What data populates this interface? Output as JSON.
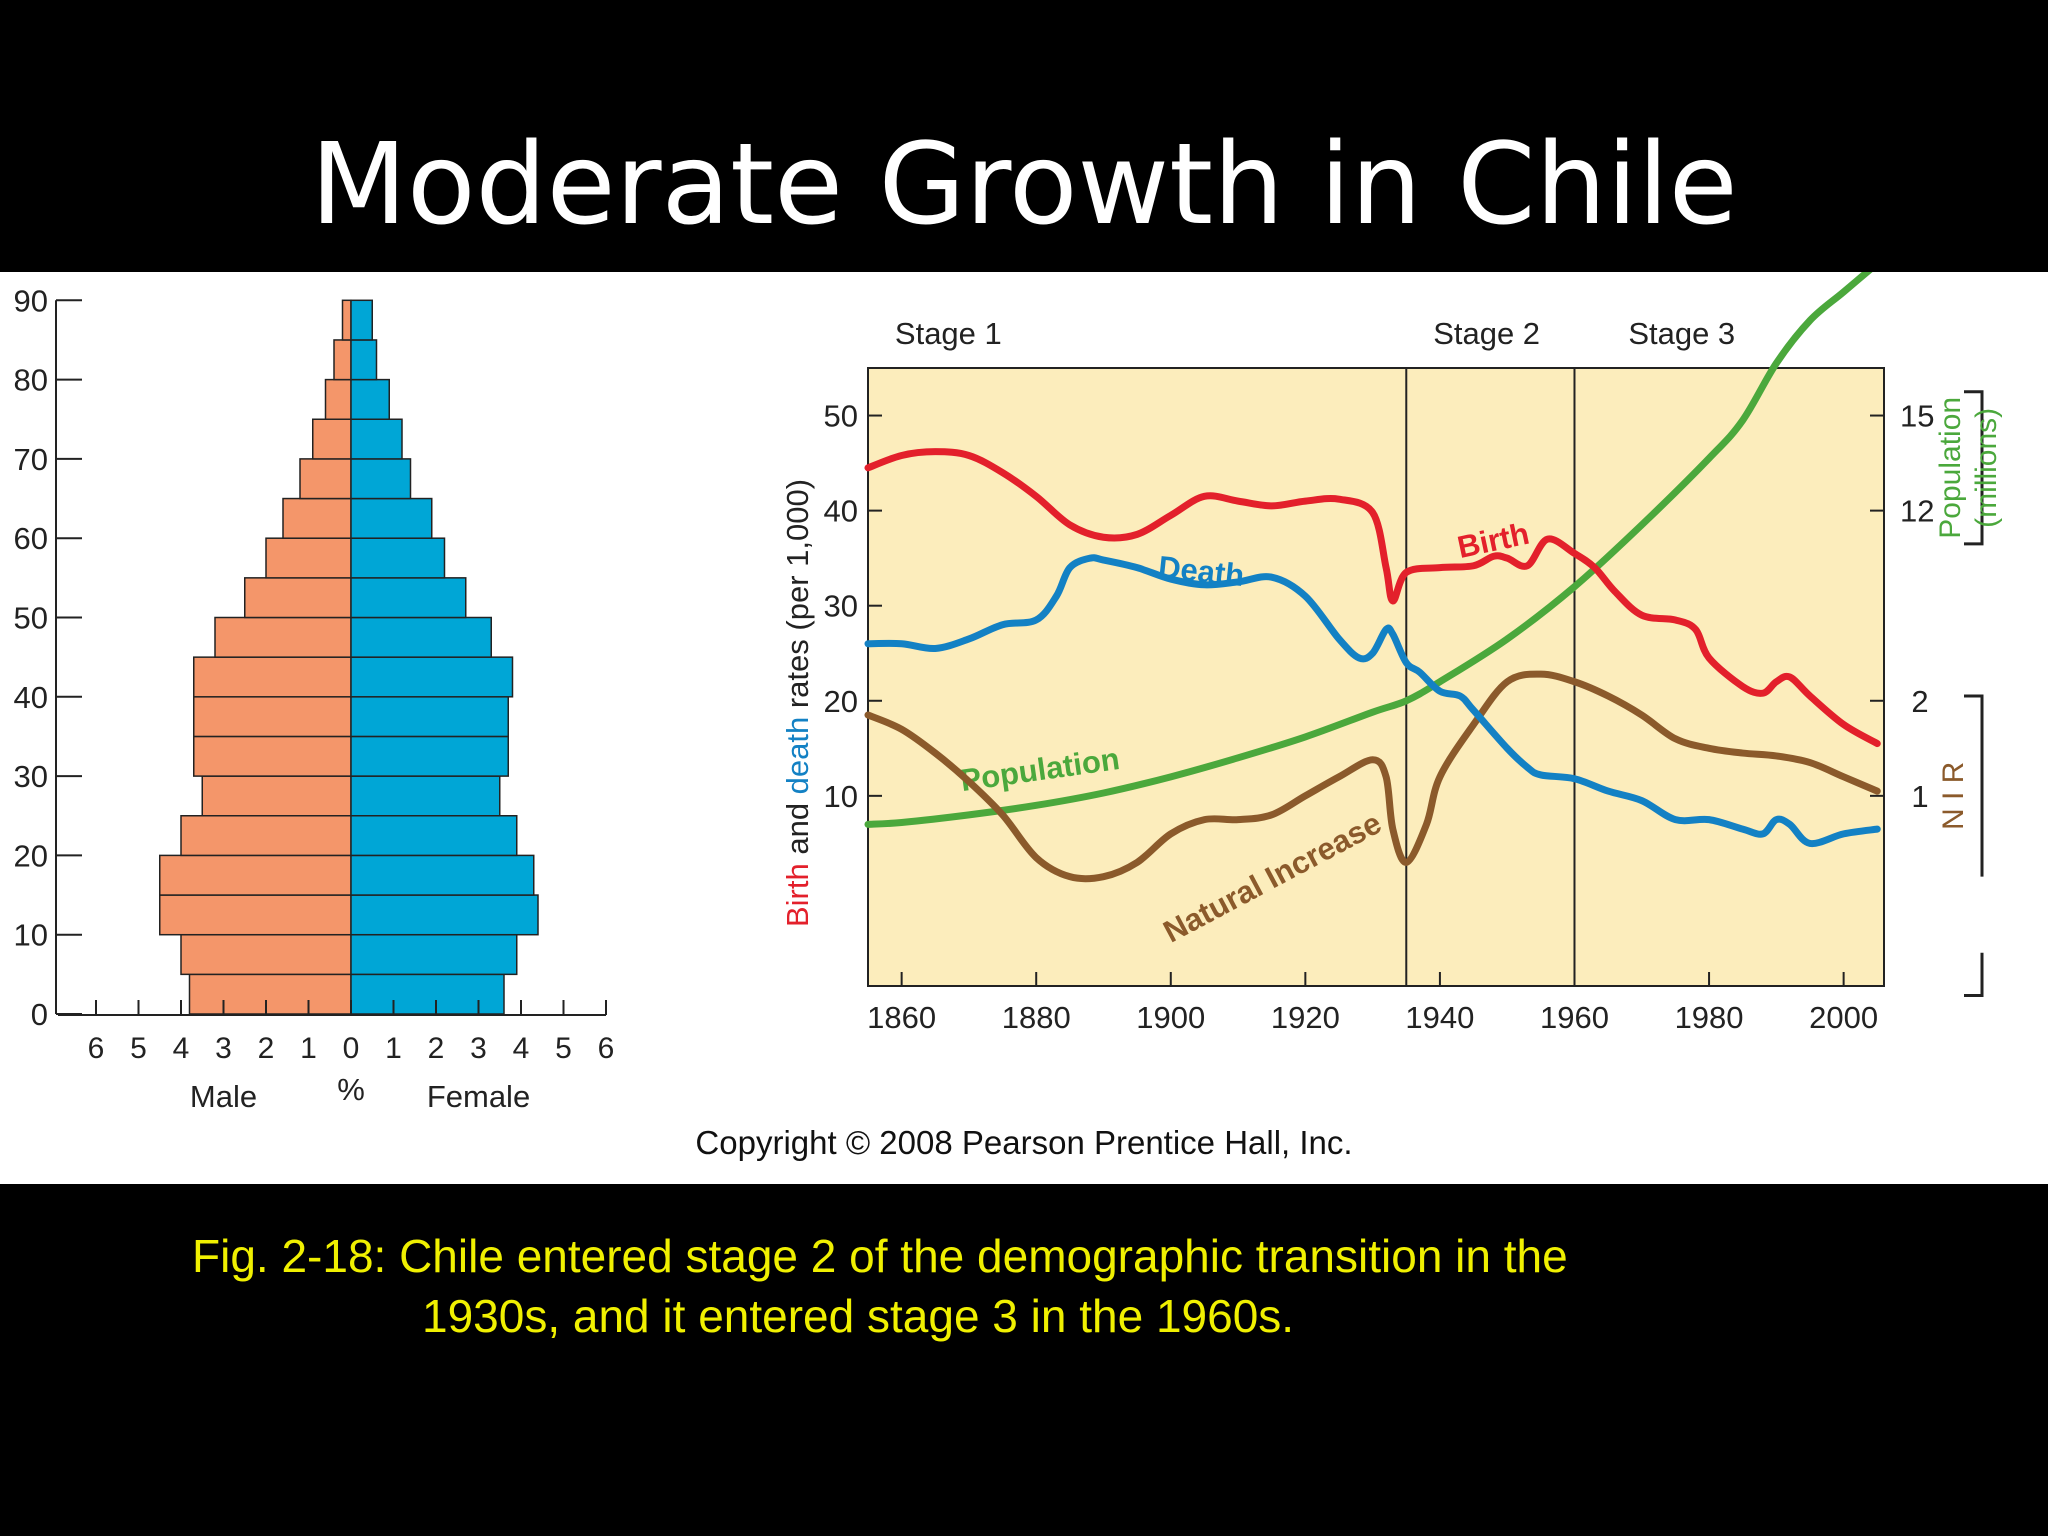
{
  "slide": {
    "title": "Moderate Growth in Chile",
    "copyright": "Copyright © 2008 Pearson Prentice Hall, Inc.",
    "caption_line1": "Fig. 2-18:  Chile entered stage 2 of the demographic transition in the",
    "caption_line2": "1930s, and it entered stage 3 in the 1960s."
  },
  "colors": {
    "male": "#F4966A",
    "female": "#00A6D6",
    "birth": "#E3202B",
    "death": "#1381C4",
    "population": "#4BA83C",
    "natural_increase": "#8B5A2B",
    "plot_bg": "#FCEDBC"
  },
  "chart_data": [
    {
      "type": "bar",
      "subtype": "population-pyramid",
      "xlabel": "%",
      "side_labels": {
        "left": "Male",
        "right": "Female"
      },
      "x_ticks": [
        "6",
        "5",
        "4",
        "3",
        "2",
        "1",
        "0",
        "1",
        "2",
        "3",
        "4",
        "5",
        "6"
      ],
      "y_ticks": [
        "0",
        "10",
        "20",
        "30",
        "40",
        "50",
        "60",
        "70",
        "80",
        "90"
      ],
      "xlim": [
        -6,
        6
      ],
      "ylim": [
        0,
        90
      ],
      "age_groups": [
        {
          "from": 0,
          "to": 5,
          "male": 3.8,
          "female": 3.6
        },
        {
          "from": 5,
          "to": 10,
          "male": 4.0,
          "female": 3.9
        },
        {
          "from": 10,
          "to": 15,
          "male": 4.5,
          "female": 4.4
        },
        {
          "from": 15,
          "to": 20,
          "male": 4.5,
          "female": 4.3
        },
        {
          "from": 20,
          "to": 25,
          "male": 4.0,
          "female": 3.9
        },
        {
          "from": 25,
          "to": 30,
          "male": 3.5,
          "female": 3.5
        },
        {
          "from": 30,
          "to": 35,
          "male": 3.7,
          "female": 3.7
        },
        {
          "from": 35,
          "to": 40,
          "male": 3.7,
          "female": 3.7
        },
        {
          "from": 40,
          "to": 45,
          "male": 3.7,
          "female": 3.8
        },
        {
          "from": 45,
          "to": 50,
          "male": 3.2,
          "female": 3.3
        },
        {
          "from": 50,
          "to": 55,
          "male": 2.5,
          "female": 2.7
        },
        {
          "from": 55,
          "to": 60,
          "male": 2.0,
          "female": 2.2
        },
        {
          "from": 60,
          "to": 65,
          "male": 1.6,
          "female": 1.9
        },
        {
          "from": 65,
          "to": 70,
          "male": 1.2,
          "female": 1.4
        },
        {
          "from": 70,
          "to": 75,
          "male": 0.9,
          "female": 1.2
        },
        {
          "from": 75,
          "to": 80,
          "male": 0.6,
          "female": 0.9
        },
        {
          "from": 80,
          "to": 85,
          "male": 0.4,
          "female": 0.6
        },
        {
          "from": 85,
          "to": 90,
          "male": 0.2,
          "female": 0.5
        }
      ]
    },
    {
      "type": "line",
      "ylabel_parts": [
        "Birth",
        " and ",
        "death",
        " rates (per 1,000)"
      ],
      "y2label": "Population (millions)",
      "y3label": "N I R",
      "xlim": [
        1855,
        2006
      ],
      "ylim": [
        -10,
        55
      ],
      "x_ticks": [
        1860,
        1880,
        1900,
        1920,
        1940,
        1960,
        1980,
        2000
      ],
      "y_ticks": [
        10,
        20,
        30,
        40,
        50
      ],
      "y2_ticks": [
        {
          "label": "12",
          "value": 40
        },
        {
          "label": "15",
          "value": 50
        }
      ],
      "y3_ticks": [
        {
          "label": "1",
          "value": 10
        },
        {
          "label": "2",
          "value": 20
        }
      ],
      "stages": [
        {
          "label": "Stage 1",
          "year": 1859
        },
        {
          "label": "Stage 2",
          "year": 1939
        },
        {
          "label": "Stage 3",
          "year": 1968
        }
      ],
      "stage_boundaries": [
        1935,
        1960
      ],
      "series": [
        {
          "name": "Birth",
          "label_year": 1943,
          "label_value": 35,
          "label_rotate": -12,
          "x": [
            1855,
            1860,
            1865,
            1870,
            1875,
            1880,
            1885,
            1890,
            1895,
            1900,
            1905,
            1910,
            1915,
            1920,
            1925,
            1930,
            1932,
            1933,
            1935,
            1940,
            1945,
            1948,
            1950,
            1953,
            1956,
            1960,
            1963,
            1966,
            1970,
            1975,
            1978,
            1980,
            1985,
            1988,
            1990,
            1992,
            1995,
            2000,
            2005
          ],
          "values": [
            44.5,
            45.8,
            46.2,
            45.8,
            44.0,
            41.5,
            38.5,
            37.2,
            37.5,
            39.5,
            41.5,
            41.0,
            40.5,
            41.0,
            41.2,
            39.8,
            34.0,
            30.5,
            33.5,
            34.0,
            34.2,
            35.2,
            35.0,
            34.2,
            37.0,
            35.5,
            34.0,
            31.5,
            29.0,
            28.5,
            27.5,
            24.5,
            21.5,
            20.8,
            22.0,
            22.5,
            20.5,
            17.5,
            15.5
          ]
        },
        {
          "name": "Death",
          "label_year": 1898,
          "label_value": 33,
          "label_rotate": 6,
          "x": [
            1855,
            1860,
            1865,
            1870,
            1875,
            1880,
            1883,
            1885,
            1888,
            1890,
            1895,
            1900,
            1905,
            1910,
            1915,
            1920,
            1925,
            1928,
            1930,
            1932,
            1933,
            1935,
            1937,
            1940,
            1943,
            1945,
            1950,
            1953,
            1955,
            1960,
            1965,
            1970,
            1975,
            1980,
            1985,
            1988,
            1990,
            1992,
            1995,
            2000,
            2005
          ],
          "values": [
            26.0,
            26.0,
            25.5,
            26.5,
            28.0,
            28.5,
            31.0,
            34.0,
            35.0,
            34.8,
            34.0,
            32.8,
            32.2,
            32.5,
            33.0,
            31.0,
            26.5,
            24.5,
            25.0,
            27.5,
            27.0,
            24.0,
            23.0,
            21.0,
            20.5,
            19.0,
            15.0,
            13.0,
            12.2,
            11.8,
            10.5,
            9.5,
            7.5,
            7.5,
            6.5,
            6.0,
            7.5,
            7.0,
            5.0,
            6.0,
            6.5
          ]
        },
        {
          "name": "Population",
          "label_year": 1869,
          "label_value": 10.5,
          "label_rotate": -8,
          "x": [
            1855,
            1860,
            1870,
            1880,
            1890,
            1900,
            1910,
            1920,
            1930,
            1935,
            1940,
            1950,
            1960,
            1970,
            1980,
            1985,
            1990,
            1995,
            2000,
            2005
          ],
          "values": [
            7.0,
            7.2,
            8.0,
            9.0,
            10.3,
            12.0,
            14.0,
            16.2,
            18.8,
            20.0,
            22.0,
            26.5,
            32.0,
            38.5,
            45.5,
            49.5,
            55.5,
            60.0,
            63.0,
            66.0
          ]
        },
        {
          "name": "Natural Increase",
          "label_year": 1900,
          "label_value": -5.5,
          "label_rotate": -28,
          "x": [
            1855,
            1860,
            1865,
            1870,
            1875,
            1880,
            1885,
            1890,
            1895,
            1900,
            1905,
            1910,
            1915,
            1920,
            1925,
            1930,
            1932,
            1933,
            1935,
            1938,
            1940,
            1945,
            1950,
            1955,
            1960,
            1965,
            1970,
            1975,
            1980,
            1985,
            1990,
            1995,
            2000,
            2005
          ],
          "values": [
            18.5,
            17.0,
            14.5,
            11.5,
            8.0,
            3.5,
            1.5,
            1.5,
            3.0,
            6.0,
            7.5,
            7.5,
            8.0,
            10.0,
            12.0,
            13.8,
            12.0,
            6.5,
            3.0,
            7.0,
            12.0,
            17.5,
            22.0,
            22.8,
            22.0,
            20.5,
            18.5,
            16.0,
            15.0,
            14.5,
            14.2,
            13.5,
            12.0,
            10.5
          ]
        }
      ]
    }
  ]
}
